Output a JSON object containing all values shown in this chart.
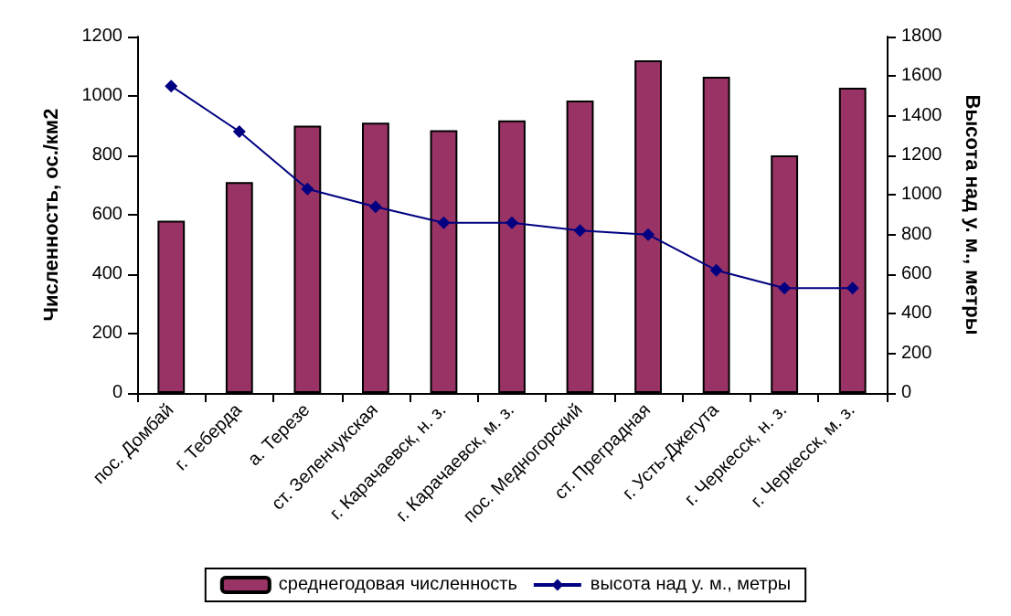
{
  "chart_data": {
    "type": "bar",
    "ylabel": "Численность, ос./км2",
    "y2label": "Высота над у. м., метры",
    "categories": [
      "пос. Домбай",
      "г. Теберда",
      "а. Терезе",
      "ст. Зеленчукская",
      "г. Карачаевск, н. з.",
      "г. Карачаевск, м. з.",
      "пос. Медногорский",
      "ст. Преградная",
      "г. Усть-Джегута",
      "г. Черкесск, н. з.",
      "г. Черкесск, м. з."
    ],
    "series": [
      {
        "name": "среднегодовая численность",
        "color": "#993366",
        "values": [
          580,
          710,
          900,
          910,
          885,
          918,
          985,
          1120,
          1065,
          800,
          1028
        ]
      },
      {
        "name": "высота над у. м., метры",
        "type": "line",
        "axis": "y2",
        "color": "#000080",
        "marker": "diamond",
        "values": [
          1550,
          1320,
          1030,
          940,
          860,
          860,
          820,
          800,
          620,
          530,
          530
        ]
      }
    ],
    "ylim": [
      0,
      1200
    ],
    "yticks": [
      0,
      200,
      400,
      600,
      800,
      1000,
      1200
    ],
    "y2lim": [
      0,
      1800
    ],
    "y2ticks": [
      0,
      200,
      400,
      600,
      800,
      1000,
      1200,
      1400,
      1600,
      1800
    ],
    "grid": false,
    "legend": "bottom"
  }
}
